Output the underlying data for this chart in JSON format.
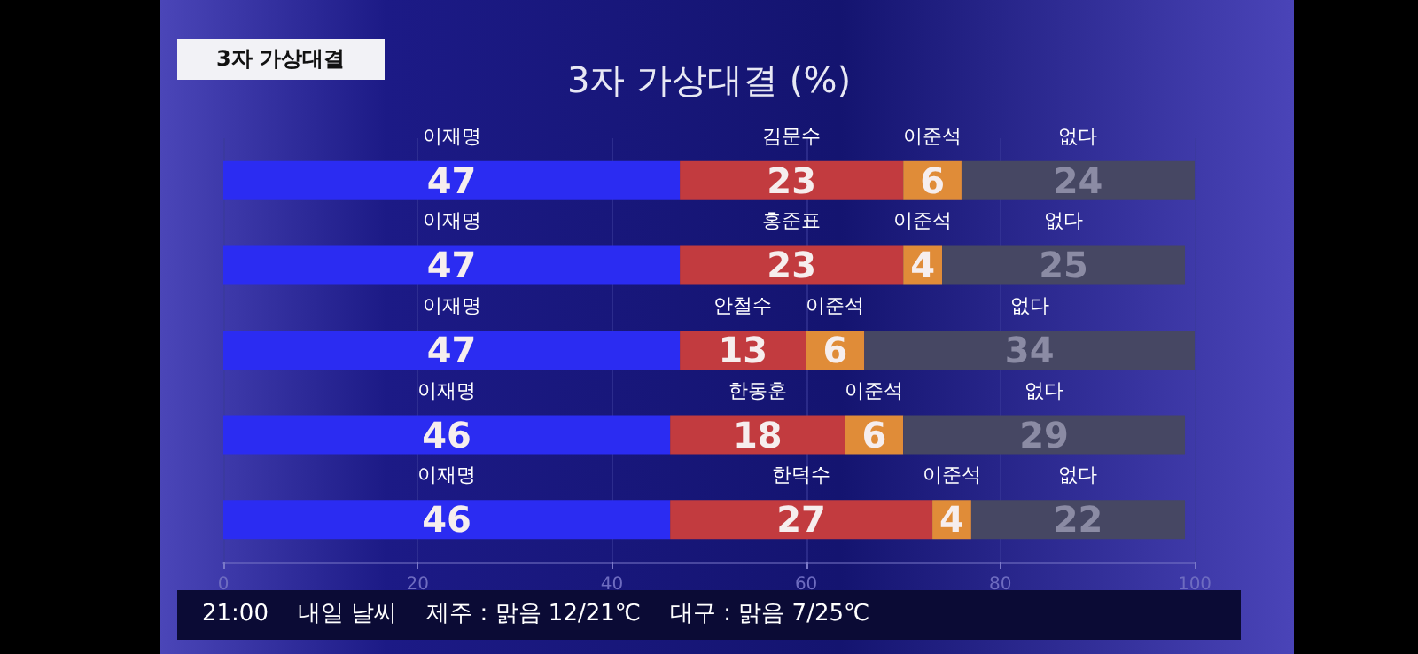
{
  "chart_data": {
    "type": "bar",
    "orientation": "horizontal",
    "stacked": true,
    "title": "3자 가상대결 (%)",
    "categories": [
      null,
      null,
      null,
      null,
      null
    ],
    "series": [
      {
        "name": "이재명",
        "color": "#2b2cf2",
        "values": [
          47,
          47,
          47,
          46,
          46
        ]
      },
      {
        "color": "#c23b3f",
        "values": [
          23,
          23,
          13,
          18,
          27
        ]
      },
      {
        "name": "이준석",
        "color": "#e08c38",
        "values": [
          6,
          4,
          6,
          6,
          4
        ]
      },
      {
        "name": "없다",
        "color": "#464763",
        "values": [
          24,
          25,
          34,
          29,
          22
        ]
      }
    ],
    "xlim": [
      0,
      100
    ],
    "xticks": [
      0,
      20,
      40,
      60,
      80,
      100
    ],
    "grid": "x",
    "data_labels": true,
    "annotations": [
      "3자 가상대결",
      "김문수",
      "홍준표",
      "안철수",
      "한동훈",
      "한덕수",
      "21:00    내일 날씨    제주 : 맑음 12/21℃    대구 : 맑음 7/25℃"
    ]
  }
}
